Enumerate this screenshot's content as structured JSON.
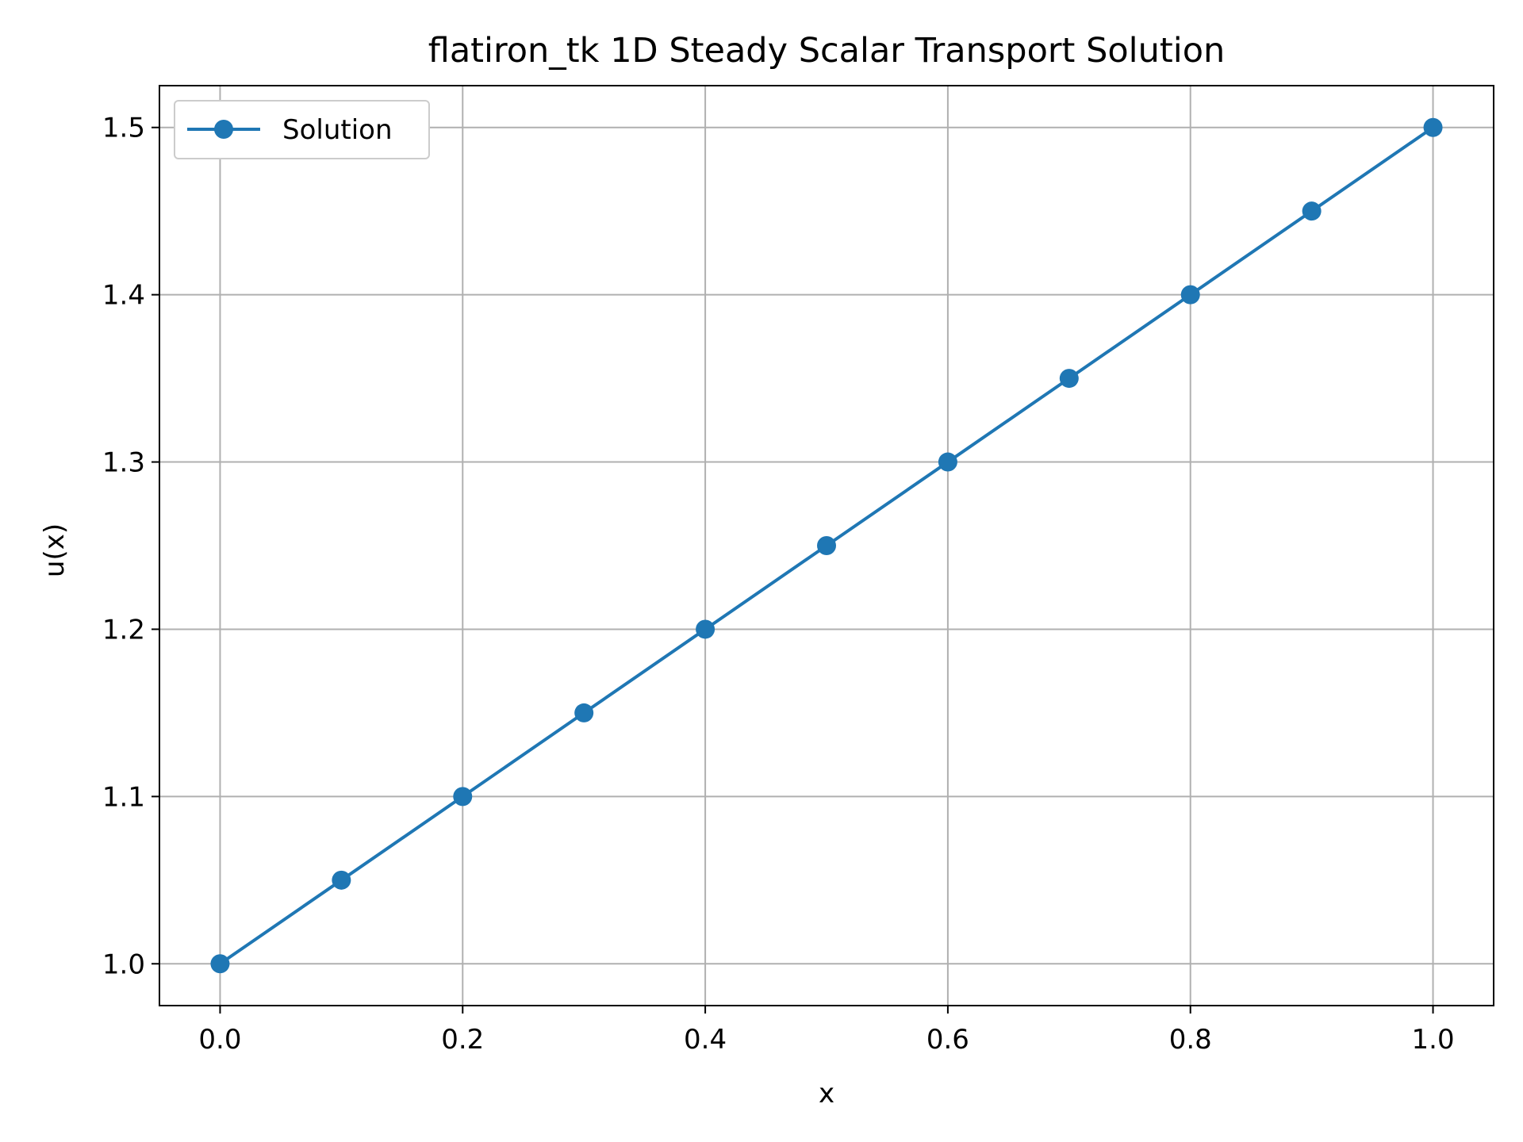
{
  "chart_data": {
    "type": "line",
    "title": "flatiron_tk 1D Steady Scalar Transport Solution",
    "xlabel": "x",
    "ylabel": "u(x)",
    "xlim": [
      -0.05,
      1.05
    ],
    "ylim": [
      0.975,
      1.525
    ],
    "xticks": [
      "0.0",
      "0.2",
      "0.4",
      "0.6",
      "0.8",
      "1.0"
    ],
    "yticks": [
      "1.0",
      "1.1",
      "1.2",
      "1.3",
      "1.4",
      "1.5"
    ],
    "grid": true,
    "legend_position": "top-left",
    "series": [
      {
        "name": "Solution",
        "color": "#1f77b4",
        "marker": "circle",
        "x": [
          0.0,
          0.1,
          0.2,
          0.3,
          0.4,
          0.5,
          0.6,
          0.7,
          0.8,
          0.9,
          1.0
        ],
        "y": [
          1.0,
          1.05,
          1.1,
          1.15,
          1.2,
          1.25,
          1.3,
          1.35,
          1.4,
          1.45,
          1.5
        ]
      }
    ]
  },
  "colors": {
    "grid": "#b0b0b0",
    "axes": "#000000",
    "background": "#ffffff",
    "legend_border": "#cccccc"
  }
}
